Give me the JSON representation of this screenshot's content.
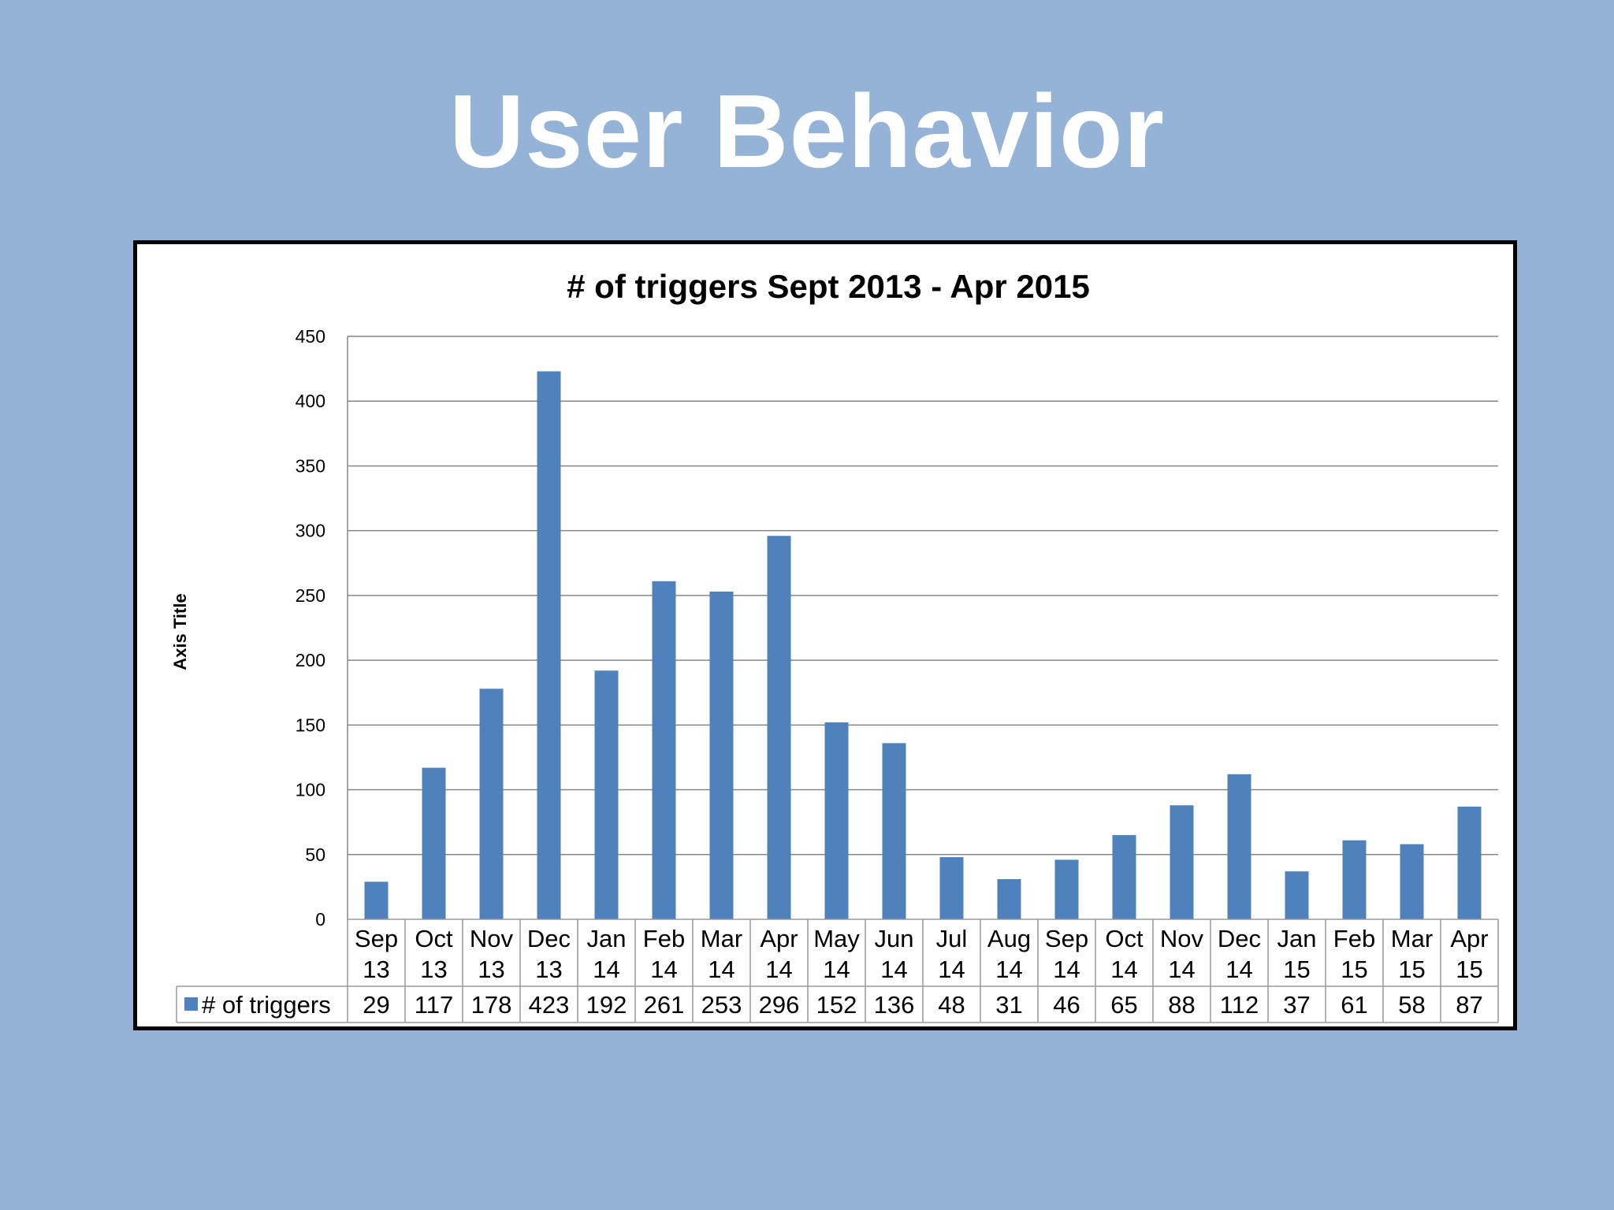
{
  "slide": {
    "title": "User Behavior"
  },
  "colors": {
    "background": "#95b3d7",
    "bar": "#4f81bd",
    "gridline": "#868686"
  },
  "chart_data": {
    "type": "bar",
    "title": "# of triggers Sept 2013 - Apr 2015",
    "xlabel": "",
    "ylabel": "Axis Title",
    "ylim": [
      0,
      450
    ],
    "ytick_step": 50,
    "grid": true,
    "legend_position": "data-table",
    "categories": [
      [
        "Sep",
        "13"
      ],
      [
        "Oct",
        "13"
      ],
      [
        "Nov",
        "13"
      ],
      [
        "Dec",
        "13"
      ],
      [
        "Jan",
        "14"
      ],
      [
        "Feb",
        "14"
      ],
      [
        "Mar",
        "14"
      ],
      [
        "Apr",
        "14"
      ],
      [
        "May",
        "14"
      ],
      [
        "Jun",
        "14"
      ],
      [
        "Jul",
        "14"
      ],
      [
        "Aug",
        "14"
      ],
      [
        "Sep",
        "14"
      ],
      [
        "Oct",
        "14"
      ],
      [
        "Nov",
        "14"
      ],
      [
        "Dec",
        "14"
      ],
      [
        "Jan",
        "15"
      ],
      [
        "Feb",
        "15"
      ],
      [
        "Mar",
        "15"
      ],
      [
        "Apr",
        "15"
      ]
    ],
    "series": [
      {
        "name": "# of triggers",
        "values": [
          29,
          117,
          178,
          423,
          192,
          261,
          253,
          296,
          152,
          136,
          48,
          31,
          46,
          65,
          88,
          112,
          37,
          61,
          58,
          87
        ]
      }
    ]
  }
}
